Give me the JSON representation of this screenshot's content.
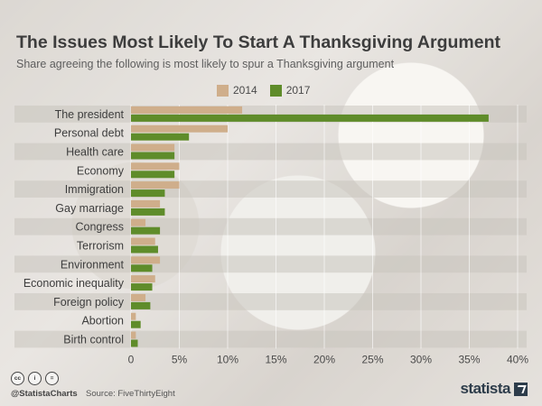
{
  "header": {
    "title": "The Issues Most Likely To Start A Thanksgiving Argument",
    "subtitle": "Share agreeing the following is most likely to spur a Thanksgiving argument"
  },
  "colors": {
    "s2014": "#cfae8b",
    "s2017": "#5f8c2a",
    "stripe": "#c9c4be"
  },
  "chart_data": {
    "type": "bar",
    "orientation": "horizontal",
    "title": "The Issues Most Likely To Start A Thanksgiving Argument",
    "subtitle": "Share agreeing the following is most likely to spur a Thanksgiving argument",
    "categories": [
      "The president",
      "Personal debt",
      "Health care",
      "Economy",
      "Immigration",
      "Gay marriage",
      "Congress",
      "Terrorism",
      "Environment",
      "Economic inequality",
      "Foreign policy",
      "Abortion",
      "Birth control"
    ],
    "series": [
      {
        "name": "2014",
        "values": [
          11.5,
          10,
          4.5,
          5,
          5,
          3,
          1.5,
          2.5,
          3,
          2.5,
          1.5,
          0.5,
          0.5
        ]
      },
      {
        "name": "2017",
        "values": [
          37,
          6,
          4.5,
          4.5,
          3.5,
          3.5,
          3,
          2.8,
          2.2,
          2.2,
          2,
          1,
          0.7
        ]
      }
    ],
    "xlim": [
      0,
      40
    ],
    "xticks": [
      "0",
      "5%",
      "10%",
      "15%",
      "20%",
      "25%",
      "30%",
      "35%",
      "40%"
    ],
    "legend": "top-center"
  },
  "footer": {
    "handle": "@StatistaCharts",
    "source": "Source: FiveThirtyEight",
    "brand": "statista",
    "license_icons": [
      "cc",
      "i",
      "="
    ]
  }
}
